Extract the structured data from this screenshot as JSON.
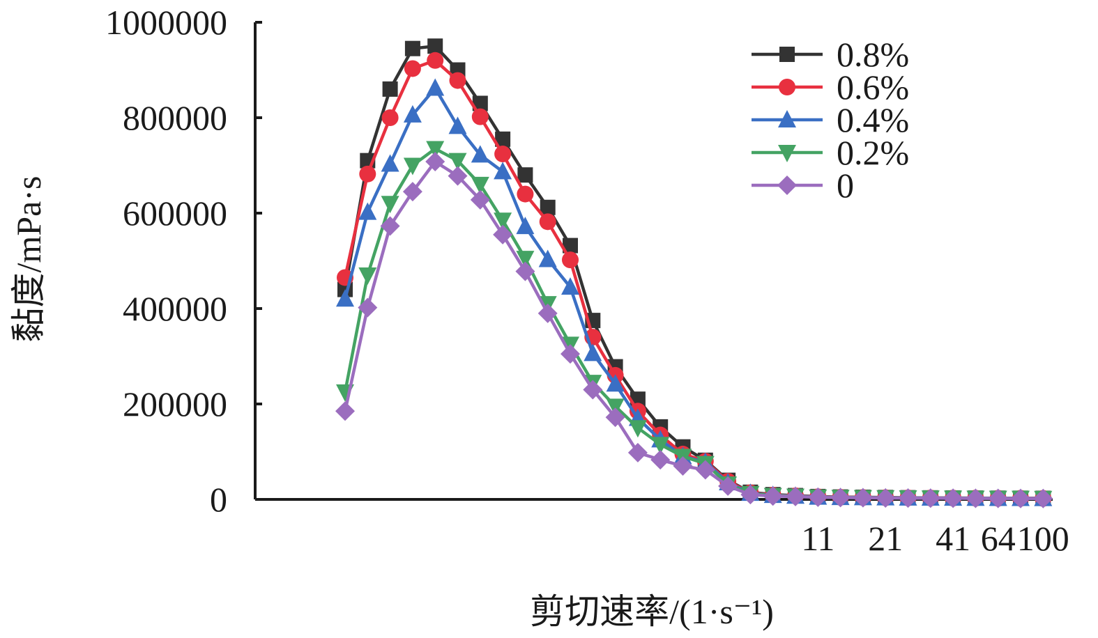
{
  "chart_data": {
    "type": "line",
    "title": "",
    "xlabel": "剪切速率/(1·s⁻¹)",
    "ylabel": "黏度/mPa·s",
    "ylim": [
      0,
      1000000
    ],
    "y_ticks": [
      0,
      200000,
      400000,
      600000,
      800000,
      1000000
    ],
    "y_tick_labels": [
      "0",
      "200000",
      "400000",
      "600000",
      "800000",
      "1000000"
    ],
    "x_tick_labels": [
      {
        "index": 21,
        "label": "11"
      },
      {
        "index": 24,
        "label": "21"
      },
      {
        "index": 27,
        "label": "41"
      },
      {
        "index": 29,
        "label": "64"
      },
      {
        "index": 31,
        "label": "100"
      }
    ],
    "x_index_count": 33,
    "legend_position": "top-right",
    "grid": false,
    "series": [
      {
        "name": "0.8%",
        "color": "#333333",
        "marker": "square",
        "values": [
          440000,
          710000,
          860000,
          945000,
          950000,
          900000,
          830000,
          755000,
          680000,
          612000,
          532000,
          375000,
          278000,
          210000,
          152000,
          110000,
          82000,
          40000,
          15000,
          10000,
          8000,
          6000,
          5000,
          4500,
          4000,
          3500,
          3200,
          3000,
          2800,
          2600,
          2500,
          2300
        ]
      },
      {
        "name": "0.6%",
        "color": "#e8303f",
        "marker": "circle",
        "values": [
          465000,
          682000,
          800000,
          903000,
          920000,
          878000,
          802000,
          724000,
          640000,
          582000,
          502000,
          340000,
          260000,
          185000,
          135000,
          95000,
          80000,
          38000,
          14000,
          9000,
          7500,
          5500,
          4500,
          4000,
          3600,
          3200,
          3000,
          2800,
          2600,
          2400,
          2300,
          2100
        ]
      },
      {
        "name": "0.4%",
        "color": "#3a6fc4",
        "marker": "triangle",
        "values": [
          420000,
          602000,
          703000,
          806000,
          862000,
          782000,
          722000,
          687000,
          572000,
          503000,
          445000,
          306000,
          242000,
          170000,
          125000,
          90000,
          78000,
          35000,
          13000,
          8500,
          7000,
          5000,
          4200,
          3800,
          3400,
          3100,
          2900,
          2700,
          2500,
          2300,
          2200,
          2000
        ]
      },
      {
        "name": "0.2%",
        "color": "#44a363",
        "marker": "triangle-down",
        "values": [
          225000,
          470000,
          620000,
          700000,
          735000,
          710000,
          660000,
          585000,
          505000,
          410000,
          325000,
          245000,
          195000,
          150000,
          115000,
          90000,
          75000,
          32000,
          12000,
          8000,
          6500,
          4800,
          4000,
          3600,
          3200,
          3000,
          2800,
          2600,
          2400,
          2200,
          2100,
          1900
        ]
      },
      {
        "name": "0",
        "color": "#9b6dbe",
        "marker": "diamond",
        "values": [
          185000,
          402000,
          573000,
          645000,
          708000,
          678000,
          628000,
          555000,
          478000,
          390000,
          305000,
          230000,
          172000,
          98000,
          83000,
          70000,
          62000,
          28000,
          10000,
          7000,
          6000,
          4500,
          3800,
          3400,
          3000,
          2800,
          2600,
          2400,
          2200,
          2000,
          1900,
          1800
        ]
      }
    ]
  }
}
